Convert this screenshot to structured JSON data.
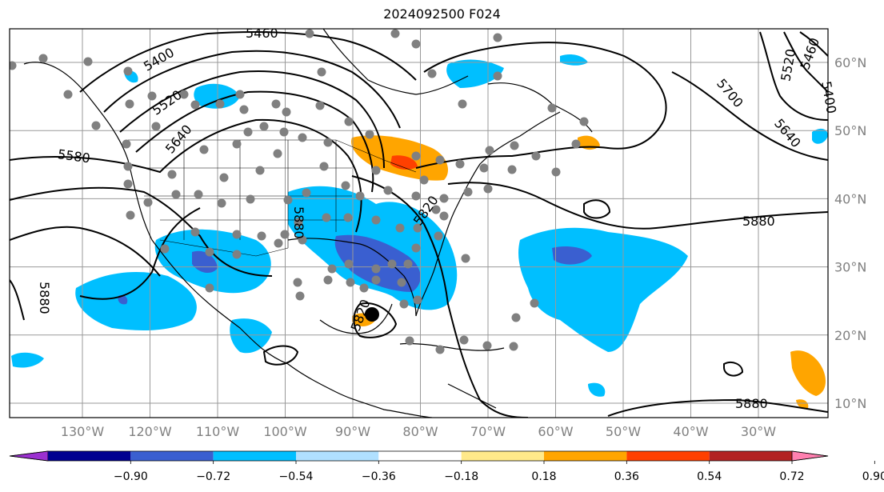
{
  "title": "2024092500 F024",
  "map": {
    "lon_labels": [
      "130°W",
      "120°W",
      "110°W",
      "100°W",
      "90°W",
      "80°W",
      "70°W",
      "60°W",
      "50°W",
      "40°W",
      "30°W"
    ],
    "lat_labels": [
      "60°N",
      "50°N",
      "40°N",
      "30°N",
      "20°N",
      "10°N"
    ],
    "grid": true,
    "contour_labels": [
      "5400",
      "5460",
      "5520",
      "5640",
      "5580",
      "5880",
      "5820",
      "5700",
      "5640",
      "5520",
      "5460",
      "5400",
      "5880",
      "5880",
      "5880",
      "5880",
      "5820",
      "5760"
    ],
    "storm_marker": "tropical-cyclone-center",
    "station_dots": "observation-sites",
    "colors": {
      "light_blue": "#b0e0ff",
      "blue": "#00bfff",
      "medium_blue": "#3a5fd0",
      "orange": "#ffa500",
      "red_orange": "#ff4000",
      "dot": "#808080"
    }
  },
  "colorbar": {
    "tick_labels": [
      "−0.90",
      "−0.72",
      "−0.54",
      "−0.36",
      "−0.18",
      "0.18",
      "0.36",
      "0.54",
      "0.72",
      "0.90"
    ],
    "colors": [
      "#9b30d0",
      "#000090",
      "#3a5fd0",
      "#00bfff",
      "#b0e0ff",
      "#ffffff",
      "#ffe98a",
      "#ffa500",
      "#ff4000",
      "#b22222",
      "#ff80b0"
    ]
  }
}
